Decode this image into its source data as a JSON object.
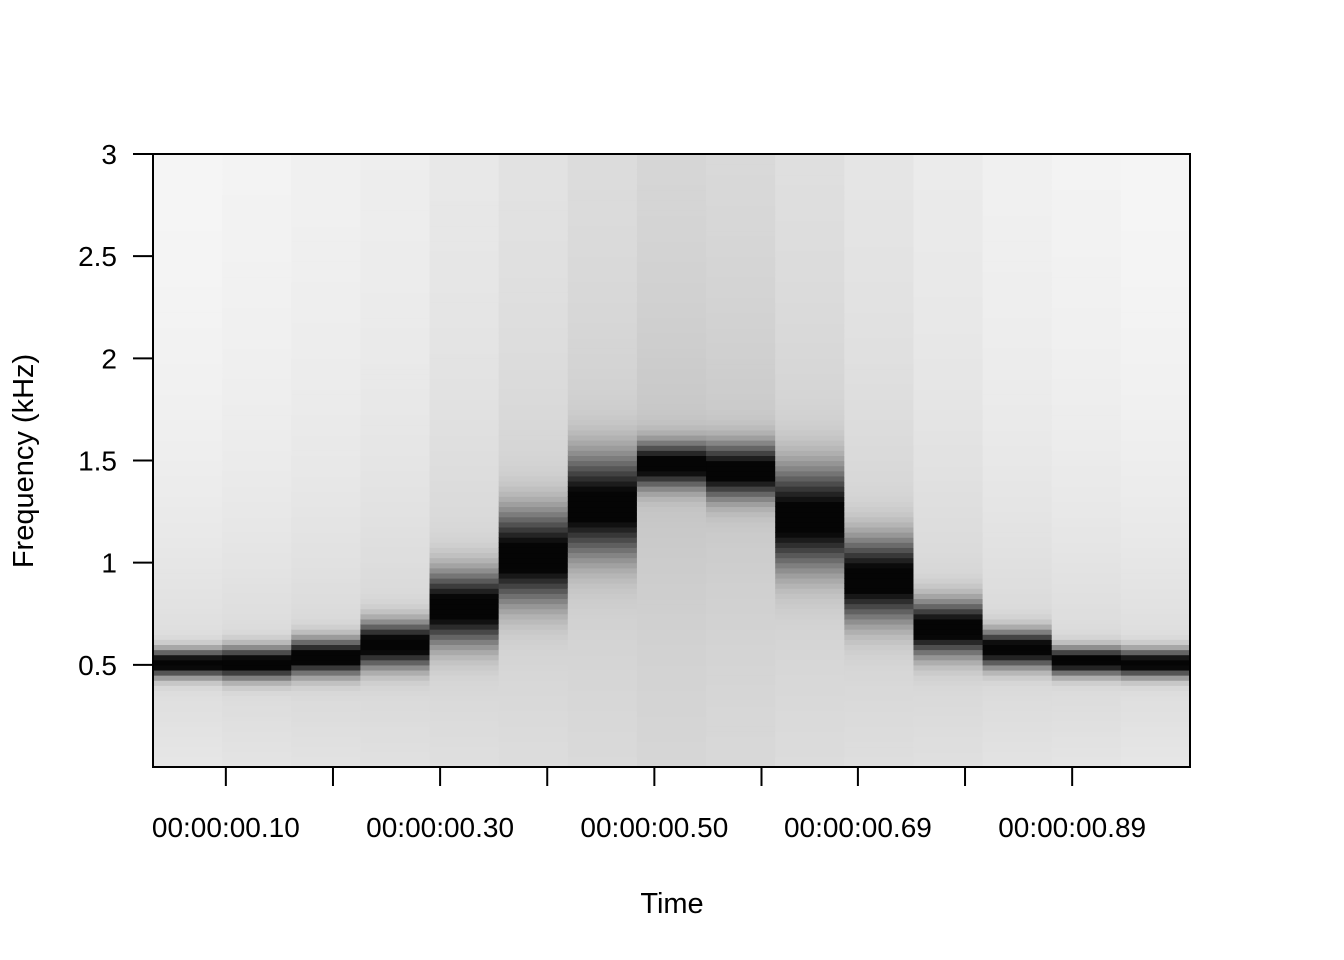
{
  "chart_data": {
    "type": "heatmap",
    "subtype": "spectrogram",
    "colormap": "grayscale (white = low, black = high)",
    "xlabel": "Time",
    "ylabel": "Frequency (kHz)",
    "x_tick_labels": [
      "00:00:00.10",
      "00:00:00.30",
      "00:00:00.50",
      "00:00:00.69",
      "00:00:00.89"
    ],
    "x_tick_values_s": [
      0.1,
      0.2,
      0.3,
      0.4,
      0.5,
      0.6,
      0.69,
      0.79,
      0.89
    ],
    "x_tick_labeled": [
      true,
      false,
      true,
      false,
      true,
      false,
      true,
      false,
      true
    ],
    "xlim_s": [
      0.032,
      1.0
    ],
    "y_ticks": [
      0.5,
      1,
      1.5,
      2,
      2.5,
      3
    ],
    "y_tick_labels": [
      "0.5",
      "1",
      "1.5",
      "2",
      "2.5",
      "3"
    ],
    "ylim_khz": [
      0,
      3
    ],
    "frames": 15,
    "frame_times_s": [
      0.064,
      0.129,
      0.193,
      0.258,
      0.322,
      0.387,
      0.451,
      0.516,
      0.58,
      0.645,
      0.709,
      0.774,
      0.838,
      0.903,
      0.967
    ],
    "peak_frequency_khz": [
      0.51,
      0.51,
      0.54,
      0.6,
      0.78,
      1.03,
      1.28,
      1.48,
      1.45,
      1.22,
      0.92,
      0.68,
      0.58,
      0.52,
      0.51
    ],
    "peak_bandwidth_khz": [
      0.06,
      0.07,
      0.08,
      0.1,
      0.16,
      0.2,
      0.22,
      0.1,
      0.12,
      0.22,
      0.18,
      0.12,
      0.08,
      0.06,
      0.06
    ],
    "background_gray": [
      0.97,
      0.96,
      0.95,
      0.94,
      0.92,
      0.9,
      0.88,
      0.86,
      0.87,
      0.89,
      0.91,
      0.93,
      0.95,
      0.96,
      0.97
    ]
  }
}
